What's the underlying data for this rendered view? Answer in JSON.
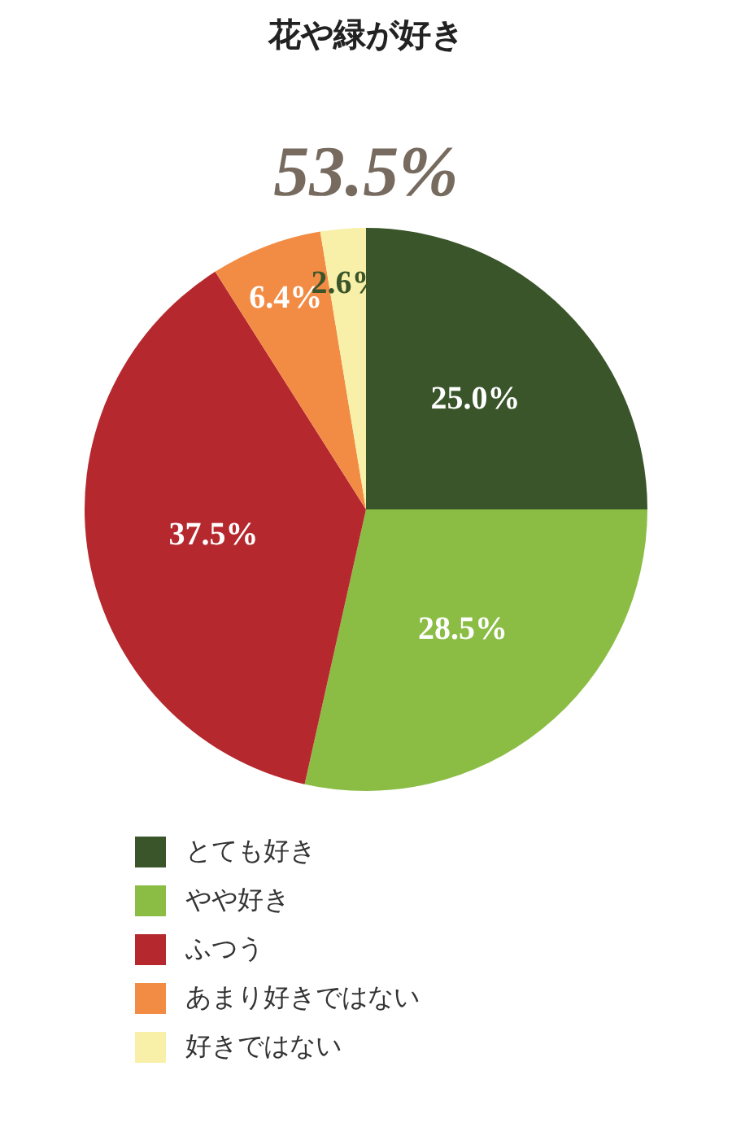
{
  "chart_data": {
    "type": "pie",
    "title": "花や緑が好き",
    "categories": [
      "とても好き",
      "やや好き",
      "ふつう",
      "あまり好きではない",
      "好きではない"
    ],
    "values": [
      25.0,
      28.5,
      37.5,
      6.4,
      2.6
    ],
    "colors": [
      "#3a552a",
      "#8bbd45",
      "#b5282e",
      "#f28c45",
      "#f8f0a8"
    ],
    "value_labels": [
      "25.0%",
      "28.5%",
      "37.5%",
      "6.4%",
      "2.6%"
    ],
    "annotations": [
      "53.5%"
    ],
    "legend": "bottom"
  }
}
